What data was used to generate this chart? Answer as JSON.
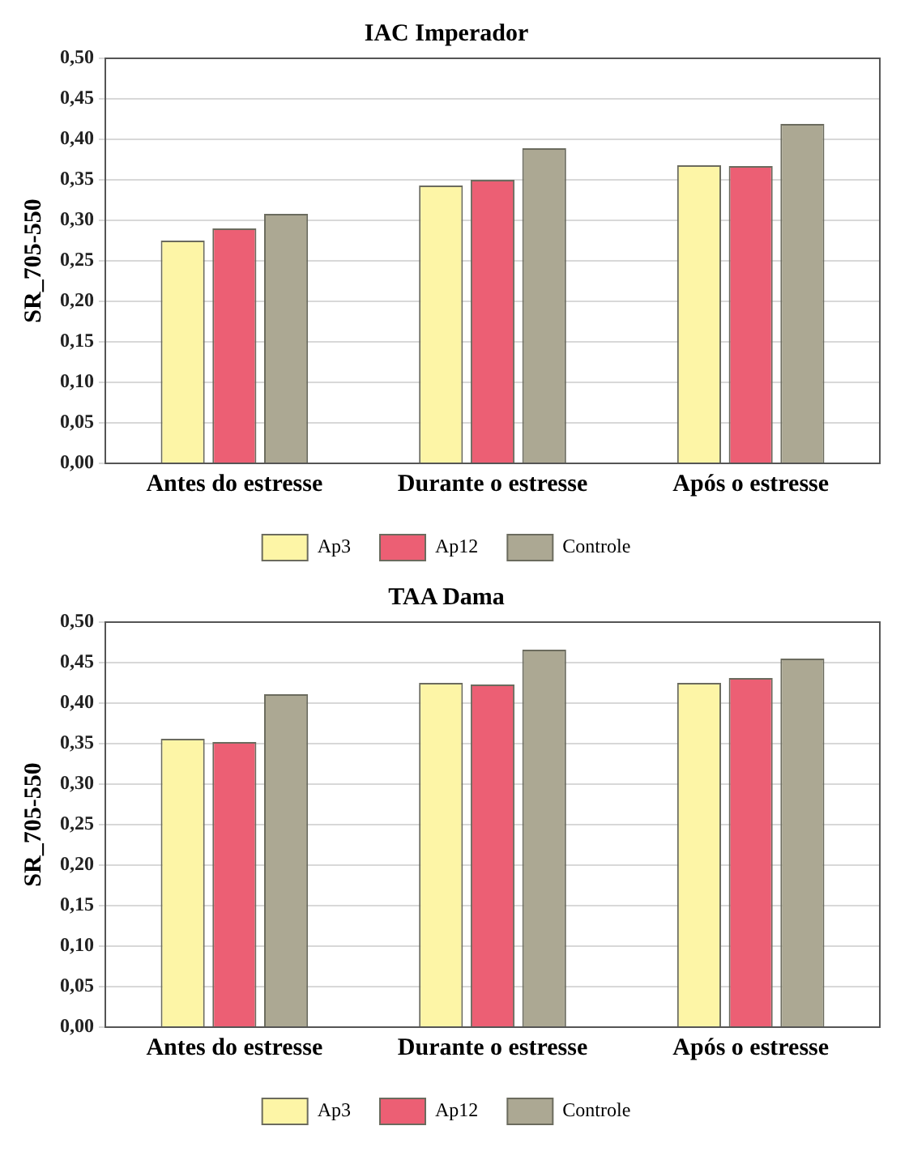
{
  "chart_data": [
    {
      "type": "bar",
      "title": "IAC Imperador",
      "ylabel": "SR_705-550",
      "categories": [
        "Antes do estresse",
        "Durante o estresse",
        "Após o estresse"
      ],
      "series": [
        {
          "name": "Ap3",
          "color": "#fdf5a6",
          "values": [
            0.275,
            0.343,
            0.368
          ]
        },
        {
          "name": "Ap12",
          "color": "#ec5f74",
          "values": [
            0.29,
            0.35,
            0.367
          ]
        },
        {
          "name": "Controle",
          "color": "#aca893",
          "values": [
            0.308,
            0.389,
            0.419
          ]
        }
      ],
      "ylim": [
        0,
        0.5
      ],
      "yticks": [
        {
          "value": 0,
          "label": "0,00"
        },
        {
          "value": 0.05,
          "label": "0,05"
        },
        {
          "value": 0.1,
          "label": "0,10"
        },
        {
          "value": 0.15,
          "label": "0,15"
        },
        {
          "value": 0.2,
          "label": "0,20"
        },
        {
          "value": 0.25,
          "label": "0,25"
        },
        {
          "value": 0.3,
          "label": "0,30"
        },
        {
          "value": 0.35,
          "label": "0,35"
        },
        {
          "value": 0.4,
          "label": "0,40"
        },
        {
          "value": 0.45,
          "label": "0,45"
        },
        {
          "value": 0.5,
          "label": "0,50"
        }
      ],
      "grid": "y",
      "legend": "bottom"
    },
    {
      "type": "bar",
      "title": "TAA Dama",
      "ylabel": "SR_705-550",
      "categories": [
        "Antes do estresse",
        "Durante o estresse",
        "Após o estresse"
      ],
      "series": [
        {
          "name": "Ap3",
          "color": "#fdf5a6",
          "values": [
            0.356,
            0.425,
            0.425
          ]
        },
        {
          "name": "Ap12",
          "color": "#ec5f74",
          "values": [
            0.352,
            0.423,
            0.431
          ]
        },
        {
          "name": "Controle",
          "color": "#aca893",
          "values": [
            0.411,
            0.466,
            0.455
          ]
        }
      ],
      "ylim": [
        0,
        0.5
      ],
      "yticks": [
        {
          "value": 0,
          "label": "0,00"
        },
        {
          "value": 0.05,
          "label": "0,05"
        },
        {
          "value": 0.1,
          "label": "0,10"
        },
        {
          "value": 0.15,
          "label": "0,15"
        },
        {
          "value": 0.2,
          "label": "0,20"
        },
        {
          "value": 0.25,
          "label": "0,25"
        },
        {
          "value": 0.3,
          "label": "0,30"
        },
        {
          "value": 0.35,
          "label": "0,35"
        },
        {
          "value": 0.4,
          "label": "0,40"
        },
        {
          "value": 0.45,
          "label": "0,45"
        },
        {
          "value": 0.5,
          "label": "0,50"
        }
      ],
      "grid": "y",
      "legend": "bottom"
    }
  ]
}
